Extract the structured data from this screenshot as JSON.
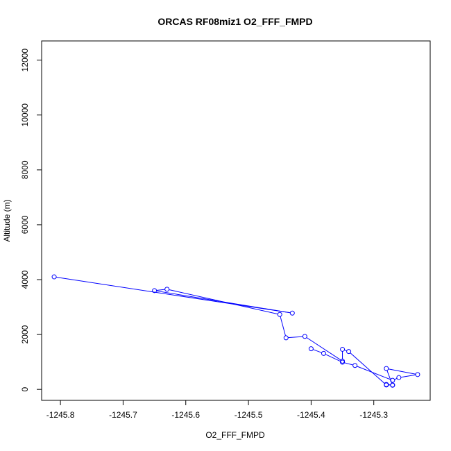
{
  "chart_data": {
    "type": "line",
    "title": "ORCAS RF08miz1 O2_FFF_FMPD",
    "xlabel": "O2_FFF_FMPD",
    "ylabel": "Altitude (m)",
    "xlim": [
      -1245.83,
      -1245.21
    ],
    "ylim": [
      -400,
      12700
    ],
    "x_ticks": [
      -1245.8,
      -1245.7,
      -1245.6,
      -1245.5,
      -1245.4,
      -1245.3
    ],
    "x_tick_labels": [
      "-1245.8",
      "-1245.7",
      "-1245.6",
      "-1245.5",
      "-1245.4",
      "-1245.3"
    ],
    "y_ticks": [
      0,
      2000,
      4000,
      6000,
      8000,
      10000,
      12000
    ],
    "y_tick_labels": [
      "0",
      "2000",
      "4000",
      "6000",
      "8000",
      "10000",
      "12000"
    ],
    "grid": false,
    "marker": "open-circle",
    "line_color": "#0000ff",
    "series": [
      {
        "x": [
          -1245.81,
          -1245.43,
          -1245.65,
          -1245.63,
          -1245.45,
          -1245.44,
          -1245.41,
          -1245.35,
          -1245.35,
          -1245.34,
          -1245.28,
          -1245.27,
          -1245.28,
          -1245.27,
          -1245.28,
          -1245.23,
          -1245.26,
          -1245.27,
          -1245.33,
          -1245.35,
          -1245.38,
          -1245.4
        ],
        "y": [
          4100,
          2780,
          3600,
          3650,
          2730,
          1880,
          1930,
          1030,
          1460,
          1380,
          160,
          160,
          180,
          150,
          760,
          540,
          430,
          330,
          870,
          990,
          1310,
          1480
        ]
      }
    ]
  }
}
